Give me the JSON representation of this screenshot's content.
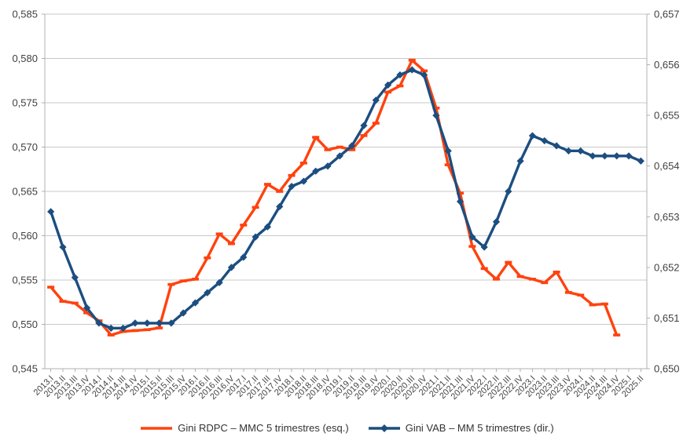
{
  "chart_data": {
    "type": "line",
    "title": "",
    "grid": "horizontal",
    "legend_position": "bottom",
    "categories": [
      "2013.I",
      "2013.II",
      "2013.III",
      "2013.IV",
      "2014.I",
      "2014.II",
      "2014.III",
      "2014.IV",
      "2015.I",
      "2015.II",
      "2015.III",
      "2015.IV",
      "2016.I",
      "2016.II",
      "2016.III",
      "2016.IV",
      "2017.I",
      "2017.II",
      "2017.III",
      "2017.IV",
      "2018.I",
      "2018.II",
      "2018.III",
      "2018.IV",
      "2019.I",
      "2019.II",
      "2019.III",
      "2019.IV",
      "2020.I",
      "2020.II",
      "2020.III",
      "2020.IV",
      "2021.I",
      "2021.II",
      "2021.III",
      "2021.IV",
      "2022.I",
      "2022.II",
      "2022.III",
      "2022.IV",
      "2023.I",
      "2023.II",
      "2023.III",
      "2023.IV",
      "2024.I",
      "2024.II",
      "2024.III",
      "2024.IV",
      "2025.I",
      "2025.II"
    ],
    "left_axis": {
      "min": 0.545,
      "max": 0.585,
      "step": 0.005,
      "tick_labels": [
        "0,545",
        "0,550",
        "0,555",
        "0,560",
        "0,565",
        "0,570",
        "0,575",
        "0,580",
        "0,585"
      ]
    },
    "right_axis": {
      "min": 0.65,
      "max": 0.657,
      "step": 0.001,
      "tick_labels": [
        "0,650",
        "0,651",
        "0,652",
        "0,653",
        "0,654",
        "0,655",
        "0,656",
        "0,657"
      ]
    },
    "series": [
      {
        "name": "Gini RDPC – MMC 5 trimestres (esq.)",
        "axis": "left",
        "color": "#FF420E",
        "marker": "dash",
        "values": [
          0.5542,
          0.5526,
          0.5524,
          0.5513,
          0.5504,
          0.5488,
          0.5492,
          0.5493,
          0.5494,
          0.5496,
          0.5545,
          0.5549,
          0.5551,
          0.5575,
          0.5602,
          0.5591,
          0.5612,
          0.5632,
          0.5658,
          0.565,
          0.5668,
          0.5682,
          0.5711,
          0.5697,
          0.57,
          0.5697,
          0.5713,
          0.5727,
          0.5762,
          0.5769,
          0.5798,
          0.5786,
          0.5744,
          0.568,
          0.5648,
          0.5588,
          0.5563,
          0.5551,
          0.557,
          0.5554,
          0.5551,
          0.5547,
          0.5559,
          0.5536,
          0.5533,
          0.5522,
          0.5523,
          0.5488,
          null,
          null
        ]
      },
      {
        "name": "Gini VAB – MM 5 trimestres (dir.)",
        "axis": "right",
        "color": "#1C4E80",
        "marker": "diamond",
        "values": [
          0.6531,
          0.6524,
          0.6518,
          0.6512,
          0.6509,
          0.6508,
          0.6508,
          0.6509,
          0.6509,
          0.6509,
          0.6509,
          0.6511,
          0.6513,
          0.6515,
          0.6517,
          0.652,
          0.6522,
          0.6526,
          0.6528,
          0.6532,
          0.6536,
          0.6537,
          0.6539,
          0.654,
          0.6542,
          0.6544,
          0.6548,
          0.6553,
          0.6556,
          0.6558,
          0.6559,
          0.6558,
          0.655,
          0.6543,
          0.6533,
          0.6526,
          0.6524,
          0.6529,
          0.6535,
          0.6541,
          0.6546,
          0.6545,
          0.6544,
          0.6543,
          0.6543,
          0.6542,
          0.6542,
          0.6542,
          0.6542,
          0.6541
        ]
      }
    ],
    "colors": {
      "grid": "#c8c8c8",
      "axis": "#b0b0b0",
      "tick_text": "#404040",
      "x_tick_text": "#444444"
    }
  }
}
